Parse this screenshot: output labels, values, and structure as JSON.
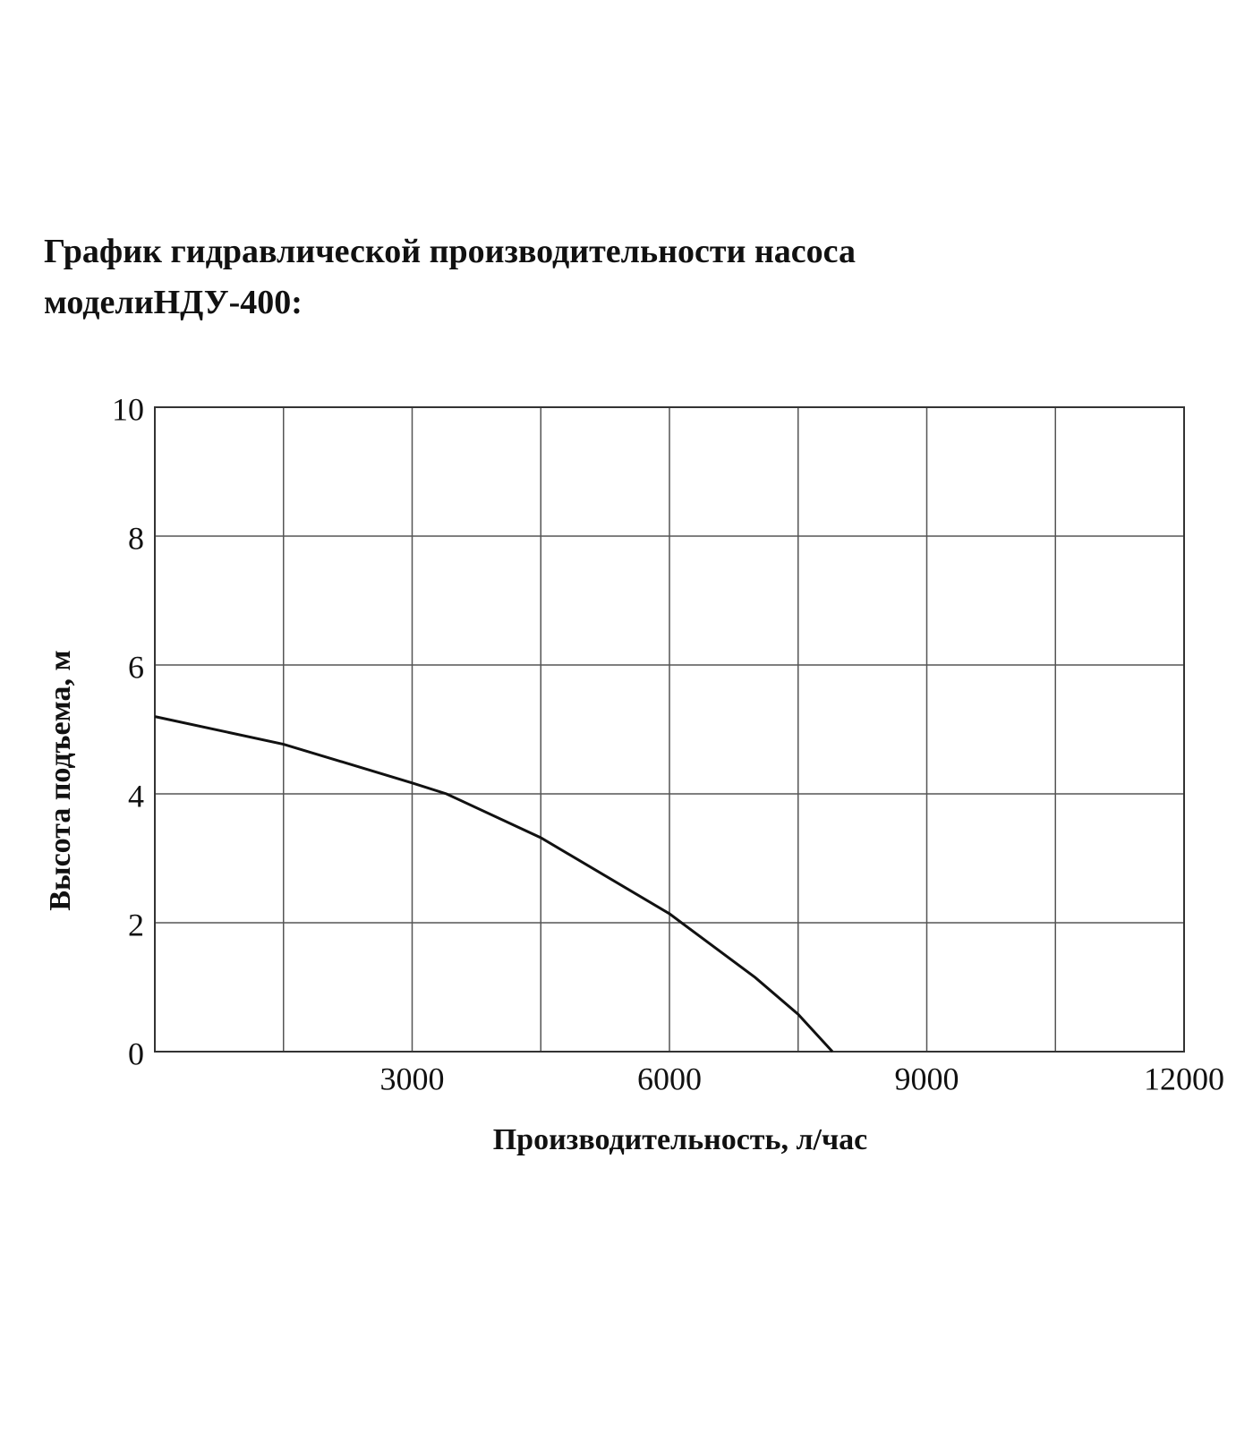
{
  "chart_data": {
    "type": "line",
    "title": "График гидравлической производительности насоса",
    "subtitle": "моделиНДУ-400:",
    "x_label": "Производительность, л/час",
    "y_label": "Высота подъема, м",
    "x": [
      0,
      1500,
      3000,
      3400,
      4500,
      6000,
      7000,
      7500,
      7900
    ],
    "series": [
      {
        "color": "#111111",
        "values": [
          5.2,
          4.77,
          4.17,
          4.0,
          3.32,
          2.14,
          1.15,
          0.58,
          0
        ]
      }
    ],
    "xlim": [
      0,
      12000
    ],
    "xticks": [
      3000,
      6000,
      9000,
      12000
    ],
    "xminor": [
      1500,
      4500,
      7500,
      10500
    ],
    "ylim": [
      0,
      10
    ],
    "yticks": [
      0,
      2,
      4,
      6,
      8,
      10
    ],
    "grid": true
  }
}
